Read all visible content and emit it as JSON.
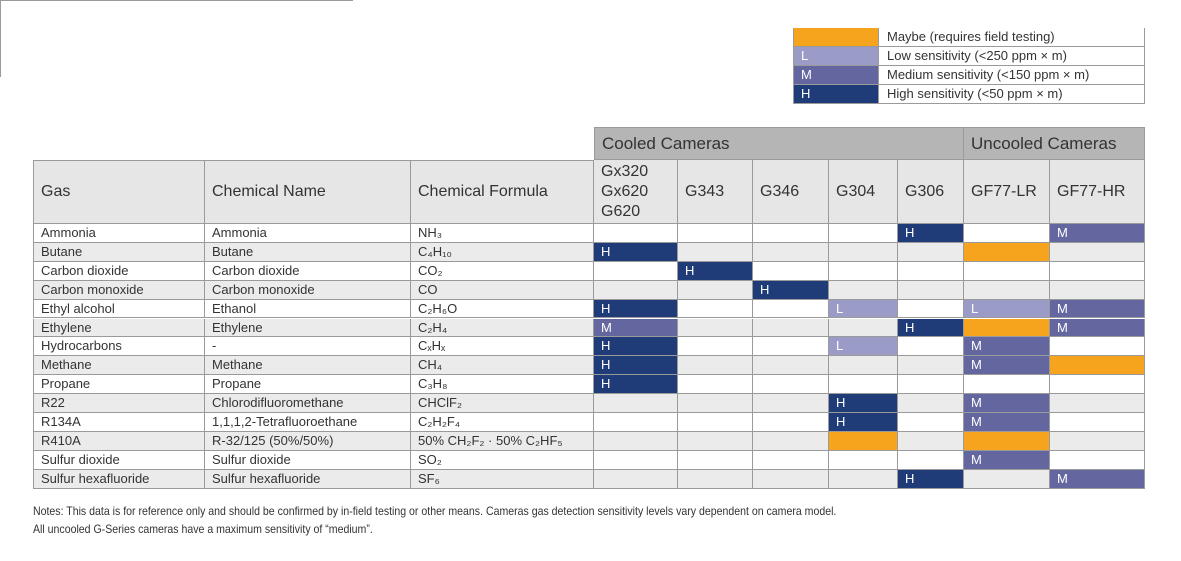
{
  "legend": [
    {
      "label": "Maybe (requires field testing)",
      "color": "#f6a41d"
    },
    {
      "key": "L",
      "label": "Low sensitivity (<250 ppm × m)",
      "color": "#9b9bc8"
    },
    {
      "key": "M",
      "label": "Medium sensitivity (<150 ppm × m)",
      "color": "#64679f"
    },
    {
      "key": "H",
      "label": "High sensitivity (<50 ppm × m)",
      "color": "#1f3b78"
    }
  ],
  "table": {
    "columns": [
      "Gas",
      "Chemical Name",
      "Chemical Formula"
    ],
    "groups": [
      {
        "label": "Cooled Cameras",
        "columns": [
          "Gx320\nGx620\nG620",
          "G343",
          "G346",
          "G304",
          "G306"
        ]
      },
      {
        "label": "Uncooled Cameras",
        "columns": [
          "GF77-LR",
          "GF77-HR"
        ]
      }
    ],
    "rows": [
      {
        "gas": "Ammonia",
        "name": "Ammonia",
        "formula": "NH₃",
        "cells": [
          null,
          null,
          null,
          null,
          "#1f3b78",
          null,
          "#64679f"
        ]
      },
      {
        "gas": "Butane",
        "name": "Butane",
        "formula": "C₄H₁₀",
        "cells": [
          "#1f3b78",
          null,
          null,
          null,
          null,
          "#f6a41d",
          null
        ]
      },
      {
        "gas": "Carbon dioxide",
        "name": "Carbon dioxide",
        "formula": "CO₂",
        "cells": [
          null,
          "#1f3b78",
          null,
          null,
          null,
          null,
          null
        ]
      },
      {
        "gas": "Carbon monoxide",
        "name": "Carbon monoxide",
        "formula": "CO",
        "cells": [
          null,
          null,
          "#1f3b78",
          null,
          null,
          null,
          null
        ]
      },
      {
        "gas": "Ethyl alcohol",
        "name": "Ethanol",
        "formula": "C₂H₆O",
        "cells": [
          "#1f3b78",
          null,
          null,
          "#9b9bc8",
          null,
          "#9b9bc8",
          "#64679f"
        ]
      },
      {
        "gas": "Ethylene",
        "name": "Ethylene",
        "formula": "C₂H₄",
        "cells": [
          "#64679f",
          null,
          null,
          null,
          "#1f3b78",
          "#f6a41d",
          "#64679f"
        ]
      },
      {
        "gas": "Hydrocarbons",
        "name": "-",
        "formula": "CₓHₓ",
        "cells": [
          "#1f3b78",
          null,
          null,
          "#9b9bc8",
          null,
          "#64679f",
          null
        ]
      },
      {
        "gas": "Methane",
        "name": "Methane",
        "formula": "CH₄",
        "cells": [
          "#1f3b78",
          null,
          null,
          null,
          null,
          "#64679f",
          "#f6a41d"
        ]
      },
      {
        "gas": "Propane",
        "name": "Propane",
        "formula": "C₃H₈",
        "cells": [
          "#1f3b78",
          null,
          null,
          null,
          null,
          null,
          null
        ]
      },
      {
        "gas": "R22",
        "name": "Chlorodifluoromethane",
        "formula": "CHClF₂",
        "cells": [
          null,
          null,
          null,
          "#1f3b78",
          null,
          "#64679f",
          null
        ]
      },
      {
        "gas": "R134A",
        "name": "1,1,1,2-Tetrafluoroethane",
        "formula": "C₂H₂F₄",
        "cells": [
          null,
          null,
          null,
          "#1f3b78",
          null,
          "#64679f",
          null
        ]
      },
      {
        "gas": "R410A",
        "name": "R-32/125 (50%/50%)",
        "formula": "50% CH₂F₂ · 50% C₂HF₅",
        "cells": [
          null,
          null,
          null,
          "#f6a41d",
          null,
          "#f6a41d",
          null
        ]
      },
      {
        "gas": "Sulfur dioxide",
        "name": "Sulfur dioxide",
        "formula": "SO₂",
        "cells": [
          null,
          null,
          null,
          null,
          null,
          "#64679f",
          null
        ]
      },
      {
        "gas": "Sulfur hexafluoride",
        "name": "Sulfur hexafluoride",
        "formula": "SF₆",
        "cells": [
          null,
          null,
          null,
          null,
          "#1f3b78",
          null,
          "#64679f"
        ]
      }
    ]
  },
  "notes": [
    "Notes: This data is for reference only and should be confirmed by in-field testing or other means. Cameras gas detection sensitivity levels vary dependent on camera model.",
    "All uncooled G-Series cameras have a maximum sensitivity of “medium”."
  ]
}
